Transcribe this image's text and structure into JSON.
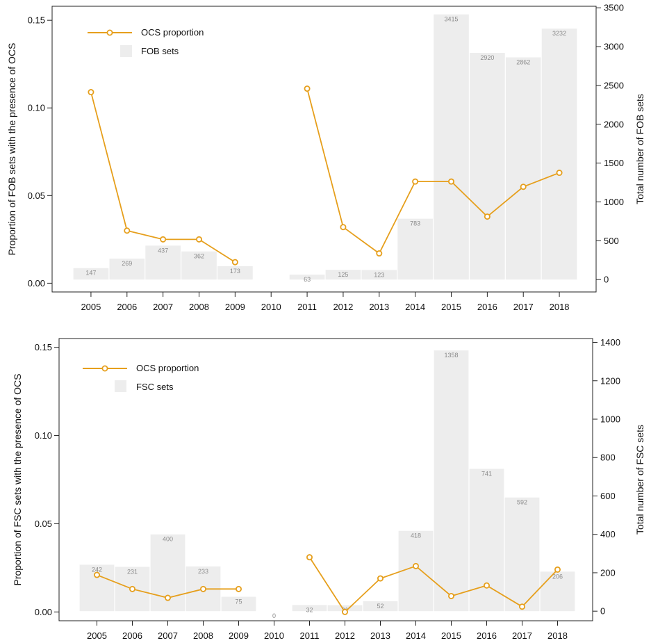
{
  "chart_data": [
    {
      "type": "bar+line",
      "categories": [
        "2005",
        "2006",
        "2007",
        "2008",
        "2009",
        "2010",
        "2011",
        "2012",
        "2013",
        "2014",
        "2015",
        "2016",
        "2017",
        "2018"
      ],
      "bars": {
        "name": "FOB sets",
        "values": [
          147,
          269,
          437,
          362,
          173,
          null,
          63,
          125,
          123,
          783,
          3415,
          2920,
          2862,
          3232
        ],
        "labels": [
          "147",
          "269",
          "437",
          "362",
          "173",
          "",
          "63",
          "125",
          "123",
          "783",
          "3415",
          "2920",
          "2862",
          "3232"
        ]
      },
      "line": {
        "name": "OCS proportion",
        "values": [
          0.109,
          0.03,
          0.025,
          0.025,
          0.012,
          null,
          0.111,
          0.032,
          0.017,
          0.058,
          0.058,
          0.038,
          0.055,
          0.063
        ]
      },
      "ylabel_left": "Proportion of FOB sets with the presence of OCS",
      "ylabel_right": "Total number of FOB sets",
      "ylim_left": [
        -0.005,
        0.158
      ],
      "ylim_right": [
        -160,
        3520
      ],
      "yticks_left": [
        0.0,
        0.05,
        0.1,
        0.15
      ],
      "yticks_left_labels": [
        "0.00",
        "0.05",
        "0.10",
        "0.15"
      ],
      "yticks_right": [
        0,
        500,
        1000,
        1500,
        2000,
        2500,
        3000,
        3500
      ],
      "yticks_right_labels": [
        "0",
        "500",
        "1000",
        "1500",
        "2000",
        "2500",
        "3000",
        "3500"
      ],
      "legend_position": "top-left",
      "colors": {
        "line": "#E69F1C",
        "bar": "#EDEDED",
        "bar_label": "#8A8A8A"
      }
    },
    {
      "type": "bar+line",
      "categories": [
        "2005",
        "2006",
        "2007",
        "2008",
        "2009",
        "2010",
        "2011",
        "2012",
        "2013",
        "2014",
        "2015",
        "2016",
        "2017",
        "2018"
      ],
      "bars": {
        "name": "FSC sets",
        "values": [
          242,
          231,
          400,
          233,
          75,
          0,
          32,
          31,
          52,
          418,
          1358,
          741,
          592,
          206
        ],
        "labels": [
          "242",
          "231",
          "400",
          "233",
          "75",
          "0",
          "32",
          "31",
          "52",
          "418",
          "1358",
          "741",
          "592",
          "206"
        ]
      },
      "line": {
        "name": "OCS proportion",
        "values": [
          0.021,
          0.013,
          0.008,
          0.013,
          0.013,
          null,
          0.031,
          0.0,
          0.019,
          0.026,
          0.009,
          0.015,
          0.003,
          0.024
        ]
      },
      "ylabel_left": "Proportion of FSC sets with the presence of OCS",
      "ylabel_right": "Total number of FSC sets",
      "ylim_left": [
        -0.005,
        0.155
      ],
      "ylim_right": [
        -50,
        1420
      ],
      "yticks_left": [
        0.0,
        0.05,
        0.1,
        0.15
      ],
      "yticks_left_labels": [
        "0.00",
        "0.05",
        "0.10",
        "0.15"
      ],
      "yticks_right": [
        0,
        200,
        400,
        600,
        800,
        1000,
        1200,
        1400
      ],
      "yticks_right_labels": [
        "0",
        "200",
        "400",
        "600",
        "800",
        "1000",
        "1200",
        "1400"
      ],
      "legend_position": "top-left",
      "colors": {
        "line": "#E69F1C",
        "bar": "#EDEDED",
        "bar_label": "#8A8A8A"
      }
    }
  ]
}
